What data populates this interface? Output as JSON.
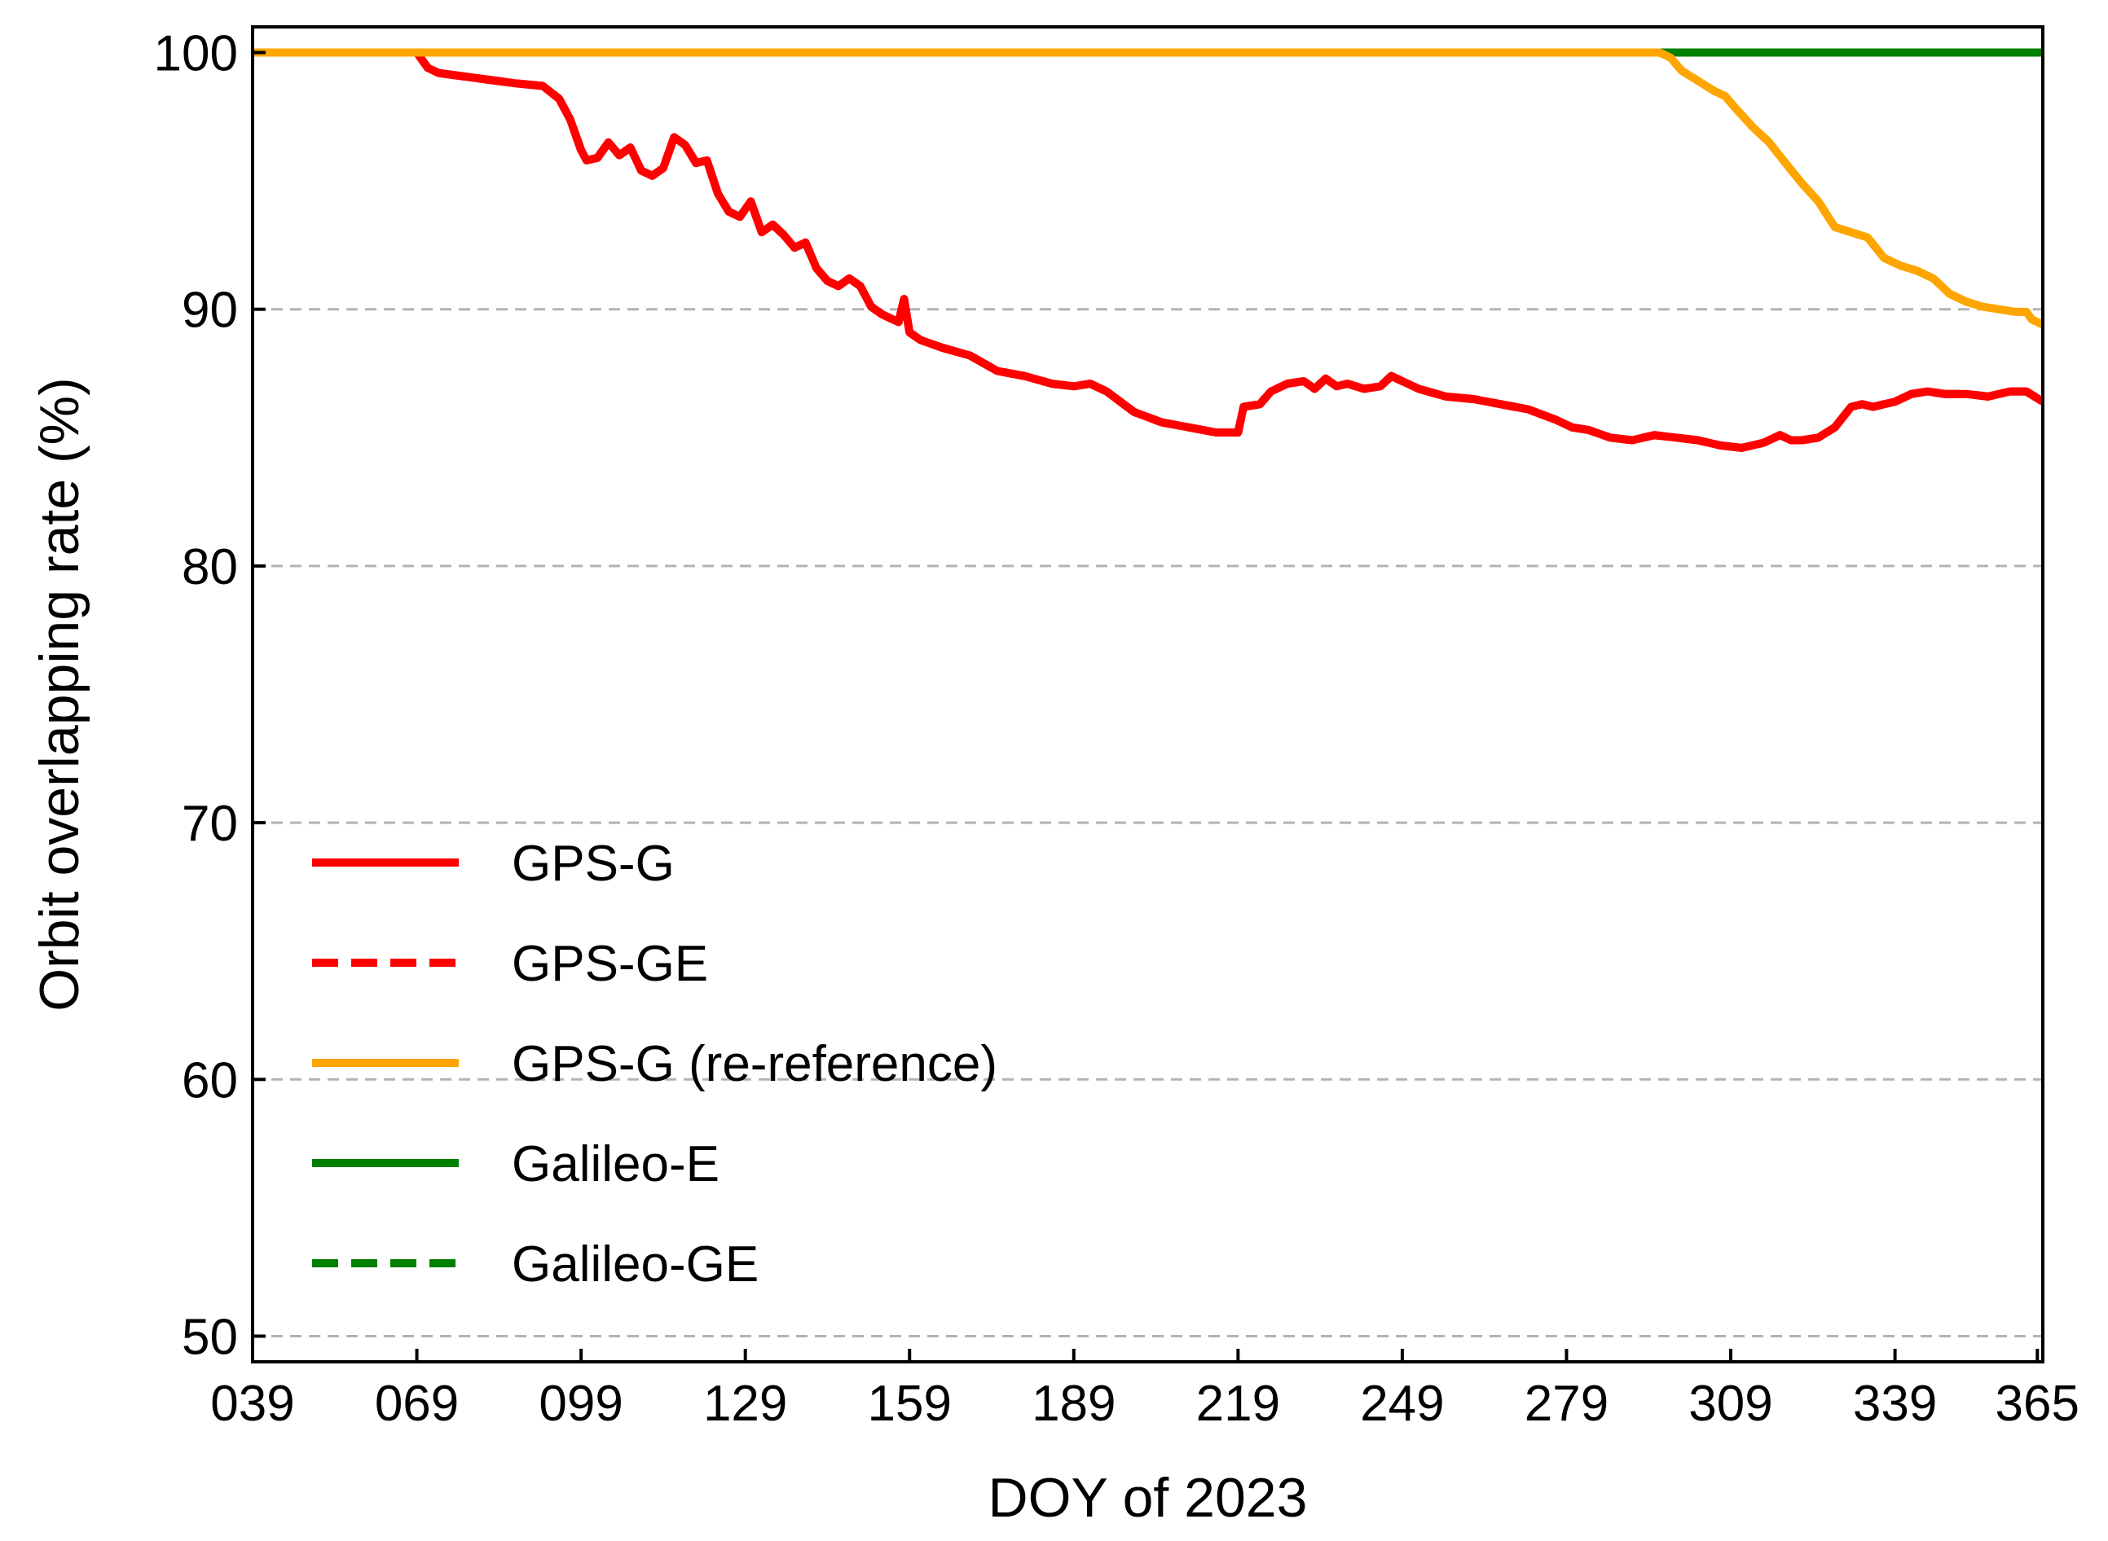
{
  "chart_data": {
    "type": "line",
    "title": "",
    "xlabel": "DOY of 2023",
    "ylabel": "Orbit overlapping rate (%)",
    "xlim": [
      39,
      366
    ],
    "ylim": [
      49,
      101
    ],
    "xticks": [
      39,
      69,
      99,
      129,
      159,
      189,
      219,
      249,
      279,
      309,
      339,
      365
    ],
    "xtick_labels": [
      "039",
      "069",
      "099",
      "129",
      "159",
      "189",
      "219",
      "249",
      "279",
      "309",
      "339",
      "365"
    ],
    "yticks": [
      50,
      60,
      70,
      80,
      90,
      100
    ],
    "ytick_labels": [
      "50",
      "60",
      "70",
      "80",
      "90",
      "100"
    ],
    "grid": "horizontal dashed at y ticks",
    "legend_position": "lower-left",
    "series": [
      {
        "name": "GPS-G",
        "color": "#ff0000",
        "dash": "solid",
        "x": [
          39,
          69,
          71,
          73,
          80,
          87,
          92,
          95,
          97,
          99,
          100,
          102,
          104,
          106,
          108,
          110,
          112,
          114,
          116,
          118,
          120,
          122,
          124,
          126,
          128,
          130,
          132,
          134,
          136,
          138,
          140,
          142,
          144,
          146,
          148,
          150,
          152,
          154,
          156,
          157,
          158,
          159,
          161,
          165,
          170,
          175,
          180,
          185,
          189,
          192,
          195,
          200,
          205,
          210,
          215,
          219,
          220,
          223,
          225,
          228,
          231,
          233,
          235,
          237,
          239,
          242,
          245,
          247,
          249,
          252,
          257,
          262,
          267,
          272,
          277,
          280,
          283,
          287,
          291,
          295,
          299,
          303,
          307,
          311,
          315,
          318,
          320,
          322,
          325,
          328,
          331,
          333,
          335,
          337,
          339,
          342,
          345,
          348,
          352,
          356,
          360,
          363,
          366
        ],
        "y": [
          100,
          100,
          99.4,
          99.2,
          99.0,
          98.8,
          98.7,
          98.2,
          97.4,
          96.2,
          95.8,
          95.9,
          96.5,
          96.0,
          96.3,
          95.4,
          95.2,
          95.5,
          96.7,
          96.4,
          95.7,
          95.8,
          94.5,
          93.8,
          93.6,
          94.2,
          93.0,
          93.3,
          92.9,
          92.4,
          92.6,
          91.6,
          91.1,
          90.9,
          91.2,
          90.9,
          90.1,
          89.8,
          89.6,
          89.5,
          90.4,
          89.1,
          88.8,
          88.5,
          88.2,
          87.6,
          87.4,
          87.1,
          87.0,
          87.1,
          86.8,
          86.0,
          85.6,
          85.4,
          85.2,
          85.2,
          86.2,
          86.3,
          86.8,
          87.1,
          87.2,
          86.9,
          87.3,
          87.0,
          87.1,
          86.9,
          87.0,
          87.4,
          87.2,
          86.9,
          86.6,
          86.5,
          86.3,
          86.1,
          85.7,
          85.4,
          85.3,
          85.0,
          84.9,
          85.1,
          85.0,
          84.9,
          84.7,
          84.6,
          84.8,
          85.1,
          84.9,
          84.9,
          85.0,
          85.4,
          86.2,
          86.3,
          86.2,
          86.3,
          86.4,
          86.7,
          86.8,
          86.7,
          86.7,
          86.6,
          86.8,
          86.8,
          86.4
        ]
      },
      {
        "name": "GPS-GE",
        "color": "#ff0000",
        "dash": "dashed",
        "x": [
          39,
          69,
          71,
          73,
          80,
          87,
          92,
          95,
          97,
          99,
          100,
          102,
          104,
          106,
          108,
          110,
          112,
          114,
          116,
          118,
          120,
          122,
          124,
          126,
          128,
          130,
          132,
          134,
          136,
          138,
          140,
          142,
          144,
          146,
          148,
          150,
          152,
          154,
          156,
          157,
          158,
          159,
          161,
          165,
          170,
          175,
          180,
          185,
          189,
          192,
          195,
          200,
          205,
          210,
          215,
          219,
          220,
          223,
          225,
          228,
          231,
          233,
          235,
          237,
          239,
          242,
          245,
          247,
          249,
          252,
          257,
          262,
          267,
          272,
          277,
          280,
          283,
          287,
          291,
          295,
          299,
          303,
          307,
          311,
          315,
          318,
          320,
          322,
          325,
          328,
          331,
          333,
          335,
          337,
          339,
          342,
          345,
          348,
          352,
          356,
          360,
          363,
          366
        ],
        "y": [
          100,
          100,
          99.4,
          99.2,
          99.0,
          98.8,
          98.7,
          98.2,
          97.4,
          96.2,
          95.8,
          95.9,
          96.5,
          96.0,
          96.3,
          95.4,
          95.2,
          95.5,
          96.7,
          96.4,
          95.7,
          95.8,
          94.5,
          93.8,
          93.6,
          94.2,
          93.0,
          93.3,
          92.9,
          92.4,
          92.6,
          91.6,
          91.1,
          90.9,
          91.2,
          90.9,
          90.1,
          89.8,
          89.6,
          89.5,
          90.4,
          89.1,
          88.8,
          88.5,
          88.2,
          87.6,
          87.4,
          87.1,
          87.0,
          87.1,
          86.8,
          86.0,
          85.6,
          85.4,
          85.2,
          85.2,
          86.2,
          86.3,
          86.8,
          87.1,
          87.2,
          86.9,
          87.3,
          87.0,
          87.1,
          86.9,
          87.0,
          87.4,
          87.2,
          86.9,
          86.6,
          86.5,
          86.3,
          86.1,
          85.7,
          85.4,
          85.3,
          85.0,
          84.9,
          85.1,
          85.0,
          84.9,
          84.7,
          84.6,
          84.8,
          85.1,
          84.9,
          84.9,
          85.0,
          85.4,
          86.2,
          86.3,
          86.2,
          86.3,
          86.4,
          86.7,
          86.8,
          86.7,
          86.7,
          86.6,
          86.8,
          86.8,
          86.4
        ]
      },
      {
        "name": "GPS-G (re-reference)",
        "color": "#ffa500",
        "dash": "solid",
        "x": [
          39,
          296,
          298,
          300,
          303,
          306,
          308,
          310,
          313,
          316,
          319,
          322,
          325,
          328,
          331,
          334,
          337,
          340,
          343,
          346,
          349,
          352,
          355,
          358,
          361,
          363,
          364,
          366
        ],
        "y": [
          100,
          100,
          99.8,
          99.3,
          98.9,
          98.5,
          98.3,
          97.8,
          97.1,
          96.5,
          95.7,
          94.9,
          94.2,
          93.2,
          93.0,
          92.8,
          92.0,
          91.7,
          91.5,
          91.2,
          90.6,
          90.3,
          90.1,
          90.0,
          89.9,
          89.9,
          89.6,
          89.4
        ]
      },
      {
        "name": "Galileo-E",
        "color": "#008000",
        "dash": "solid",
        "x": [
          39,
          366
        ],
        "y": [
          100,
          100
        ]
      },
      {
        "name": "Galileo-GE",
        "color": "#008000",
        "dash": "dashed",
        "x": [
          39,
          366
        ],
        "y": [
          100,
          100
        ]
      }
    ]
  }
}
